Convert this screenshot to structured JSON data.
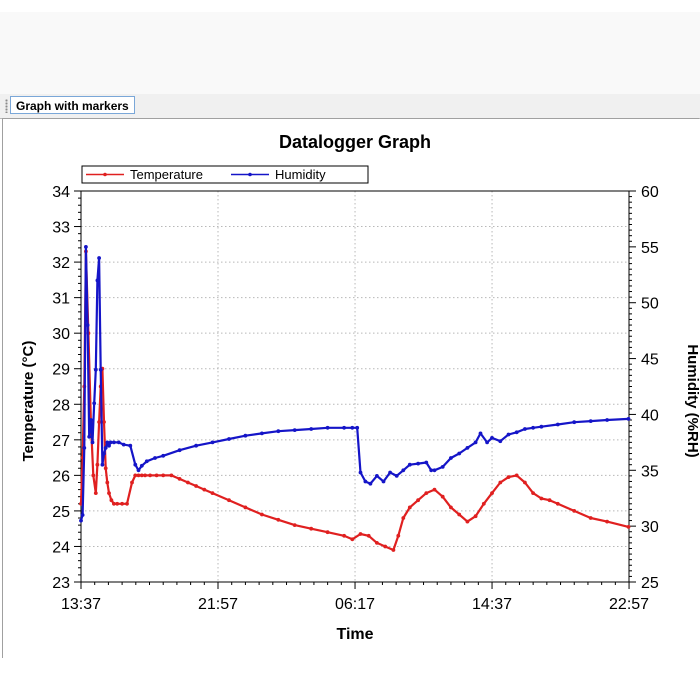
{
  "tab": {
    "label": "Graph with markers"
  },
  "colors": {
    "temperature": "#e02020",
    "humidity": "#1515c8",
    "grid": "#b8b8b8",
    "axis": "#000000"
  },
  "chart_data": {
    "type": "line",
    "title": "Datalogger Graph",
    "xlabel": "Time",
    "ylabel_left": "Temperature (°C)",
    "ylabel_right": "Humidity (%RH)",
    "legend_position": "top-left",
    "grid": true,
    "x_unit": "hours since 13:37",
    "xlim": [
      0,
      33.33
    ],
    "x_ticks": [
      0,
      8.333,
      16.667,
      25,
      33.333
    ],
    "x_tick_labels": [
      "13:37",
      "21:57",
      "06:17",
      "14:37",
      "22:57"
    ],
    "ylim_left": [
      23,
      34
    ],
    "y_ticks_left": [
      "23",
      "24",
      "25",
      "26",
      "27",
      "28",
      "29",
      "30",
      "31",
      "32",
      "33",
      "34"
    ],
    "ylim_right": [
      25,
      60
    ],
    "y_ticks_right": [
      "25",
      "30",
      "35",
      "40",
      "45",
      "50",
      "55",
      "60"
    ],
    "series": [
      {
        "name": "Temperature",
        "axis": "left",
        "x": [
          0,
          0.1,
          0.2,
          0.3,
          0.45,
          0.6,
          0.75,
          0.9,
          1.0,
          1.1,
          1.2,
          1.3,
          1.4,
          1.5,
          1.6,
          1.7,
          1.85,
          2.0,
          2.2,
          2.5,
          2.8,
          3.1,
          3.3,
          3.5,
          3.7,
          3.9,
          4.2,
          4.6,
          5.0,
          5.5,
          6.0,
          6.5,
          7.0,
          7.5,
          8.0,
          9.0,
          10.0,
          11.0,
          12.0,
          13.0,
          14.0,
          15.0,
          16.0,
          16.5,
          17.0,
          17.5,
          18.0,
          18.5,
          19.0,
          19.3,
          19.6,
          20.0,
          20.5,
          21.0,
          21.5,
          22.0,
          22.5,
          23.0,
          23.5,
          24.0,
          24.5,
          25.0,
          25.5,
          26.0,
          26.5,
          27.0,
          27.5,
          28.0,
          28.5,
          29.0,
          30.0,
          31.0,
          32.0,
          33.3
        ],
        "values": [
          25.2,
          26.5,
          28.5,
          32.3,
          30.0,
          27.5,
          26.0,
          25.5,
          26.3,
          27.5,
          28.5,
          29.0,
          27.5,
          26.2,
          25.8,
          25.5,
          25.3,
          25.2,
          25.2,
          25.2,
          25.2,
          25.8,
          26.0,
          26.0,
          26.0,
          26.0,
          26.0,
          26.0,
          26.0,
          26.0,
          25.9,
          25.8,
          25.7,
          25.6,
          25.5,
          25.3,
          25.1,
          24.9,
          24.75,
          24.6,
          24.5,
          24.4,
          24.3,
          24.2,
          24.35,
          24.3,
          24.1,
          24.0,
          23.9,
          24.3,
          24.8,
          25.1,
          25.3,
          25.5,
          25.6,
          25.4,
          25.1,
          24.9,
          24.7,
          24.85,
          25.2,
          25.5,
          25.8,
          25.95,
          26.0,
          25.8,
          25.5,
          25.35,
          25.3,
          25.2,
          25.0,
          24.8,
          24.7,
          24.55
        ]
      },
      {
        "name": "Humidity",
        "axis": "right",
        "x": [
          0,
          0.1,
          0.2,
          0.3,
          0.4,
          0.5,
          0.6,
          0.7,
          0.8,
          0.9,
          1.0,
          1.1,
          1.2,
          1.3,
          1.4,
          1.5,
          1.6,
          1.7,
          1.8,
          2.0,
          2.3,
          2.6,
          3.0,
          3.3,
          3.5,
          3.7,
          4.0,
          4.5,
          5.0,
          6.0,
          7.0,
          8.0,
          9.0,
          10.0,
          11.0,
          12.0,
          13.0,
          14.0,
          15.0,
          16.0,
          16.5,
          16.8,
          17.0,
          17.3,
          17.6,
          18.0,
          18.4,
          18.8,
          19.2,
          19.6,
          20.0,
          20.5,
          21.0,
          21.3,
          21.5,
          22.0,
          22.5,
          23.0,
          23.5,
          24.0,
          24.3,
          24.7,
          25.0,
          25.5,
          26.0,
          26.5,
          27.0,
          27.5,
          28.0,
          29.0,
          30.0,
          31.0,
          32.0,
          33.3
        ],
        "values": [
          30.5,
          31.0,
          37.0,
          55.0,
          48.0,
          38.0,
          39.5,
          37.5,
          41.0,
          44.0,
          52.0,
          54.0,
          44.0,
          35.5,
          36.5,
          37.0,
          37.5,
          37.2,
          37.5,
          37.5,
          37.5,
          37.3,
          37.2,
          35.5,
          35.0,
          35.4,
          35.8,
          36.1,
          36.3,
          36.8,
          37.2,
          37.5,
          37.8,
          38.1,
          38.3,
          38.5,
          38.6,
          38.7,
          38.8,
          38.8,
          38.8,
          38.8,
          34.8,
          34.0,
          33.8,
          34.5,
          34.0,
          34.8,
          34.5,
          35.0,
          35.5,
          35.6,
          35.7,
          35.0,
          35.0,
          35.3,
          36.1,
          36.5,
          37.0,
          37.5,
          38.3,
          37.5,
          37.9,
          37.6,
          38.2,
          38.4,
          38.7,
          38.8,
          38.9,
          39.1,
          39.3,
          39.4,
          39.5,
          39.6
        ]
      }
    ]
  }
}
